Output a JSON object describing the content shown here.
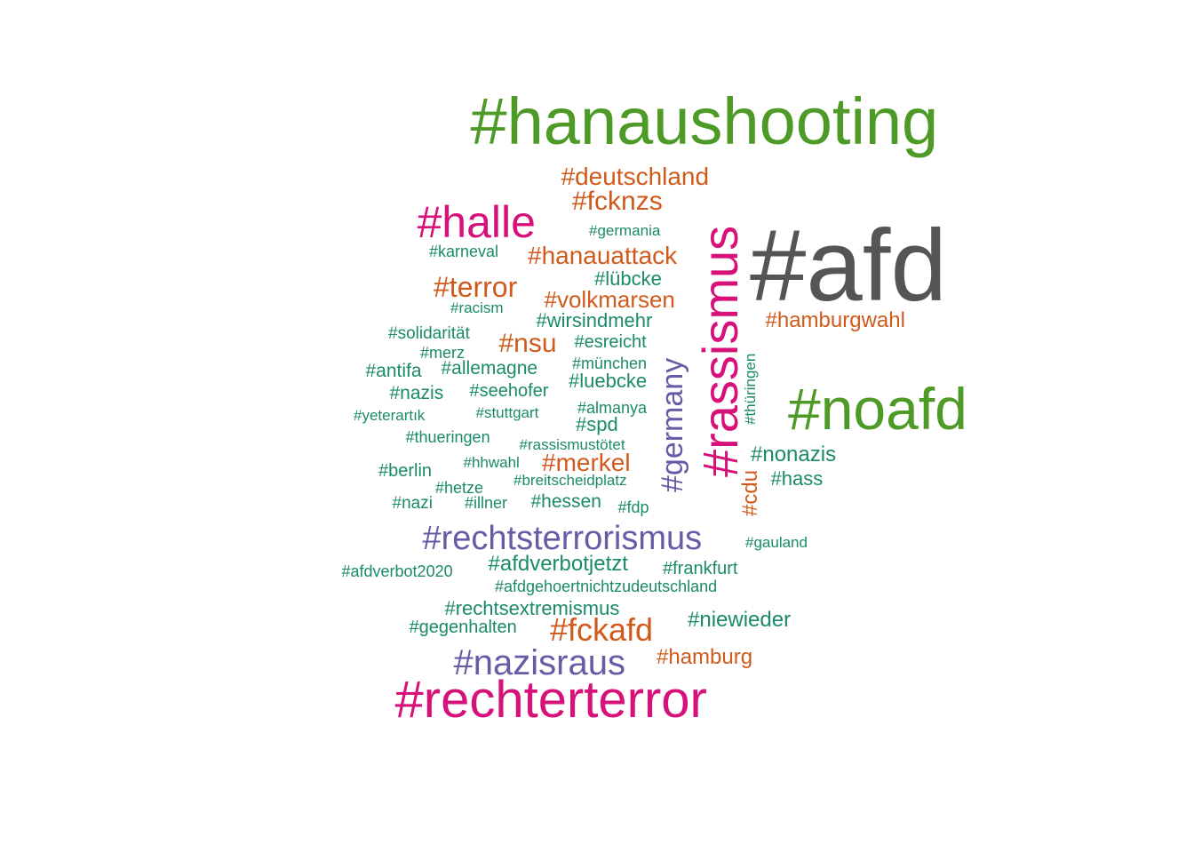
{
  "colors": {
    "green": "#4e9a26",
    "gray": "#555555",
    "magenta": "#d6117a",
    "orange": "#d05a1b",
    "purple": "#6a5aa6",
    "teal": "#1a8a6a"
  },
  "words": [
    {
      "text": "#hanaushooting",
      "color": "green"
    },
    {
      "text": "#afd",
      "color": "gray"
    },
    {
      "text": "#noafd",
      "color": "green"
    },
    {
      "text": "#rassismus",
      "color": "magenta"
    },
    {
      "text": "#rechterterror",
      "color": "magenta"
    },
    {
      "text": "#halle",
      "color": "magenta"
    },
    {
      "text": "#rechtsterrorismus",
      "color": "purple"
    },
    {
      "text": "#germany",
      "color": "purple"
    },
    {
      "text": "#nazisraus",
      "color": "purple"
    },
    {
      "text": "#fckafd",
      "color": "orange"
    },
    {
      "text": "#deutschland",
      "color": "orange"
    },
    {
      "text": "#fcknzs",
      "color": "orange"
    },
    {
      "text": "#hanauattack",
      "color": "orange"
    },
    {
      "text": "#terror",
      "color": "orange"
    },
    {
      "text": "#volkmarsen",
      "color": "orange"
    },
    {
      "text": "#hamburgwahl",
      "color": "orange"
    },
    {
      "text": "#nsu",
      "color": "orange"
    },
    {
      "text": "#merkel",
      "color": "orange"
    },
    {
      "text": "#cdu",
      "color": "orange"
    },
    {
      "text": "#hamburg",
      "color": "orange"
    },
    {
      "text": "#germania",
      "color": "teal"
    },
    {
      "text": "#karneval",
      "color": "teal"
    },
    {
      "text": "#lübcke",
      "color": "teal"
    },
    {
      "text": "#racism",
      "color": "teal"
    },
    {
      "text": "#wirsindmehr",
      "color": "teal"
    },
    {
      "text": "#solidarität",
      "color": "teal"
    },
    {
      "text": "#esreicht",
      "color": "teal"
    },
    {
      "text": "#merz",
      "color": "teal"
    },
    {
      "text": "#antifa",
      "color": "teal"
    },
    {
      "text": "#allemagne",
      "color": "teal"
    },
    {
      "text": "#münchen",
      "color": "teal"
    },
    {
      "text": "#luebcke",
      "color": "teal"
    },
    {
      "text": "#thüringen",
      "color": "teal"
    },
    {
      "text": "#nazis",
      "color": "teal"
    },
    {
      "text": "#seehofer",
      "color": "teal"
    },
    {
      "text": "#almanya",
      "color": "teal"
    },
    {
      "text": "#yeterartık",
      "color": "teal"
    },
    {
      "text": "#stuttgart",
      "color": "teal"
    },
    {
      "text": "#spd",
      "color": "teal"
    },
    {
      "text": "#thueringen",
      "color": "teal"
    },
    {
      "text": "#rassismustötet",
      "color": "teal"
    },
    {
      "text": "#nonazis",
      "color": "teal"
    },
    {
      "text": "#berlin",
      "color": "teal"
    },
    {
      "text": "#hhwahl",
      "color": "teal"
    },
    {
      "text": "#hass",
      "color": "teal"
    },
    {
      "text": "#breitscheidplatz",
      "color": "teal"
    },
    {
      "text": "#hetze",
      "color": "teal"
    },
    {
      "text": "#nazi",
      "color": "teal"
    },
    {
      "text": "#illner",
      "color": "teal"
    },
    {
      "text": "#hessen",
      "color": "teal"
    },
    {
      "text": "#fdp",
      "color": "teal"
    },
    {
      "text": "#gauland",
      "color": "teal"
    },
    {
      "text": "#afdverbot2020",
      "color": "teal"
    },
    {
      "text": "#afdverbotjetzt",
      "color": "teal"
    },
    {
      "text": "#frankfurt",
      "color": "teal"
    },
    {
      "text": "#afdgehoertnichtzudeutschland",
      "color": "teal"
    },
    {
      "text": "#rechtsextremismus",
      "color": "teal"
    },
    {
      "text": "#niewieder",
      "color": "teal"
    },
    {
      "text": "#gegenhalten",
      "color": "teal"
    }
  ]
}
